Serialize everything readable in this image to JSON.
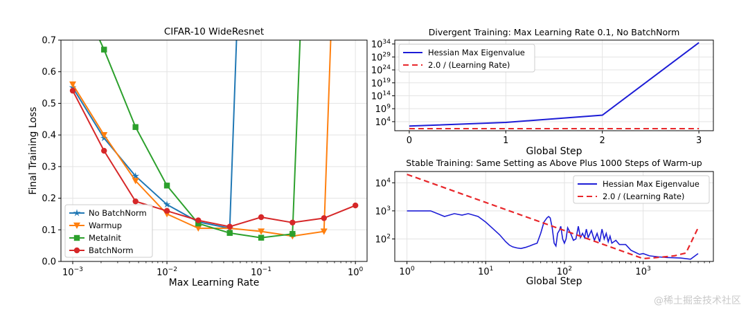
{
  "chart_data": [
    {
      "id": "left",
      "type": "line",
      "title": "CIFAR-10 WideResnet",
      "xlabel": "Max Learning Rate",
      "ylabel": "Final Training Loss",
      "xscale": "log",
      "xlim": [
        0.00075,
        1.33
      ],
      "ylim": [
        0.0,
        0.7
      ],
      "xticks": [
        {
          "v": 0.001,
          "m": "10",
          "e": "−3"
        },
        {
          "v": 0.01,
          "m": "10",
          "e": "−2"
        },
        {
          "v": 0.1,
          "m": "10",
          "e": "−1"
        },
        {
          "v": 1,
          "m": "10",
          "e": "0"
        }
      ],
      "yticks": [
        {
          "v": 0.0,
          "t": "0.0"
        },
        {
          "v": 0.1,
          "t": "0.1"
        },
        {
          "v": 0.2,
          "t": "0.2"
        },
        {
          "v": 0.3,
          "t": "0.3"
        },
        {
          "v": 0.4,
          "t": "0.4"
        },
        {
          "v": 0.5,
          "t": "0.5"
        },
        {
          "v": 0.6,
          "t": "0.6"
        },
        {
          "v": 0.7,
          "t": "0.7"
        }
      ],
      "grid": true,
      "legend": "lower-left",
      "series": [
        {
          "name": "No BatchNorm",
          "color": "#1f77b4",
          "marker": "star",
          "x": [
            0.001,
            0.00215,
            0.00464,
            0.01,
            0.0215,
            0.0464,
            0.055
          ],
          "y": [
            0.55,
            0.39,
            0.27,
            0.18,
            0.125,
            0.105,
            0.72
          ],
          "markers": [
            true,
            true,
            true,
            true,
            true,
            true,
            false
          ]
        },
        {
          "name": "Warmup",
          "color": "#ff7f0e",
          "marker": "triangle-down",
          "x": [
            0.001,
            0.00215,
            0.00464,
            0.01,
            0.0215,
            0.0464,
            0.1,
            0.215,
            0.464,
            0.55
          ],
          "y": [
            0.56,
            0.4,
            0.255,
            0.15,
            0.105,
            0.105,
            0.095,
            0.08,
            0.095,
            0.72
          ],
          "markers": [
            true,
            true,
            true,
            true,
            true,
            true,
            true,
            true,
            true,
            false
          ]
        },
        {
          "name": "MetaInit",
          "color": "#2ca02c",
          "marker": "square",
          "x": [
            0.0018,
            0.00215,
            0.00464,
            0.01,
            0.0215,
            0.0464,
            0.1,
            0.215,
            0.26
          ],
          "y": [
            0.72,
            0.67,
            0.425,
            0.24,
            0.12,
            0.09,
            0.075,
            0.087,
            0.72
          ],
          "markers": [
            false,
            true,
            true,
            true,
            true,
            true,
            true,
            true,
            false
          ]
        },
        {
          "name": "BatchNorm",
          "color": "#d62728",
          "marker": "circle",
          "x": [
            0.001,
            0.00215,
            0.00464,
            0.01,
            0.0215,
            0.0464,
            0.1,
            0.215,
            0.464,
            1.0
          ],
          "y": [
            0.54,
            0.35,
            0.19,
            0.16,
            0.13,
            0.11,
            0.14,
            0.123,
            0.137,
            0.177
          ],
          "markers": [
            true,
            true,
            true,
            true,
            true,
            true,
            true,
            true,
            true,
            true
          ]
        }
      ]
    },
    {
      "id": "top-right",
      "type": "line",
      "title": "Divergent Training: Max Learning Rate 0.1, No BatchNorm",
      "xlabel": "Global Step",
      "ylabel": "",
      "xscale": "linear",
      "yscale": "log10",
      "xlim": [
        -0.15,
        3.15
      ],
      "ylim_log10": [
        0.5,
        35.5
      ],
      "xticks": [
        {
          "v": 0,
          "t": "0"
        },
        {
          "v": 1,
          "t": "1"
        },
        {
          "v": 2,
          "t": "2"
        },
        {
          "v": 3,
          "t": "3"
        }
      ],
      "yticks": [
        {
          "v": 4,
          "m": "10",
          "e": "4"
        },
        {
          "v": 9,
          "m": "10",
          "e": "9"
        },
        {
          "v": 14,
          "m": "10",
          "e": "14"
        },
        {
          "v": 19,
          "m": "10",
          "e": "19"
        },
        {
          "v": 24,
          "m": "10",
          "e": "24"
        },
        {
          "v": 29,
          "m": "10",
          "e": "29"
        },
        {
          "v": 34,
          "m": "10",
          "e": "34"
        }
      ],
      "grid": true,
      "legend": "top-left",
      "series": [
        {
          "name": "Hessian Max Eigenvalue",
          "color": "#1c1cd6",
          "dash": "solid",
          "x": [
            0,
            1,
            2,
            3
          ],
          "y_log10": [
            2.3,
            3.7,
            6.5,
            34.5
          ]
        },
        {
          "name": "2.0 / (Learning Rate)",
          "color": "#e8262a",
          "dash": "dashed",
          "x": [
            0,
            1,
            2,
            3
          ],
          "y_log10": [
            1.3,
            1.3,
            1.3,
            1.3
          ]
        }
      ]
    },
    {
      "id": "bottom-right",
      "type": "line",
      "title": "Stable Training: Same Setting as Above Plus 1000 Steps of Warm-up",
      "xlabel": "Global Step",
      "ylabel": "",
      "xscale": "log",
      "yscale": "log10",
      "xlim": [
        0.7,
        7800
      ],
      "ylim_log10": [
        1.2,
        4.4
      ],
      "xticks": [
        {
          "v": 1,
          "m": "10",
          "e": "0"
        },
        {
          "v": 10,
          "m": "10",
          "e": "1"
        },
        {
          "v": 100,
          "m": "10",
          "e": "2"
        },
        {
          "v": 1000,
          "m": "10",
          "e": "3"
        }
      ],
      "yticks": [
        {
          "v": 2,
          "m": "10",
          "e": "2"
        },
        {
          "v": 3,
          "m": "10",
          "e": "3"
        },
        {
          "v": 4,
          "m": "10",
          "e": "4"
        }
      ],
      "grid": true,
      "legend": "top-right",
      "series": [
        {
          "name": "Hessian Max Eigenvalue",
          "color": "#1c1cd6",
          "dash": "solid",
          "x": [
            1,
            2,
            3,
            4,
            5,
            6,
            8,
            10,
            12,
            15,
            18,
            20,
            22,
            25,
            28,
            32,
            36,
            40,
            45,
            50,
            55,
            60,
            63,
            66,
            70,
            74,
            78,
            82,
            86,
            90,
            95,
            100,
            105,
            110,
            120,
            130,
            140,
            150,
            160,
            170,
            180,
            190,
            200,
            220,
            240,
            260,
            280,
            300,
            320,
            340,
            360,
            380,
            400,
            450,
            500,
            600,
            700,
            800,
            900,
            1000,
            1200,
            1600,
            2000,
            3000,
            4000,
            5000
          ],
          "y_log10": [
            3.0,
            3.0,
            2.8,
            2.9,
            2.85,
            2.9,
            2.8,
            2.6,
            2.4,
            2.15,
            1.9,
            1.78,
            1.72,
            1.68,
            1.66,
            1.7,
            1.75,
            1.8,
            1.85,
            2.2,
            2.6,
            2.75,
            2.8,
            2.75,
            2.4,
            1.85,
            1.75,
            2.2,
            2.3,
            2.45,
            2.0,
            1.85,
            2.0,
            2.4,
            2.2,
            1.95,
            2.0,
            2.45,
            2.05,
            2.2,
            2.05,
            2.35,
            2.05,
            2.3,
            1.95,
            2.2,
            1.9,
            2.35,
            2.0,
            2.2,
            1.9,
            2.1,
            1.85,
            1.95,
            1.8,
            1.8,
            1.6,
            1.52,
            1.45,
            1.48,
            1.4,
            1.36,
            1.34,
            1.32,
            1.28,
            1.48
          ]
        },
        {
          "name": "2.0 / (Learning Rate)",
          "color": "#e8262a",
          "dash": "dashed",
          "x": [
            1,
            1000,
            1400,
            2500,
            3500,
            5000
          ],
          "y_log10": [
            4.3,
            1.3,
            1.33,
            1.4,
            1.5,
            2.4
          ]
        }
      ]
    }
  ],
  "watermark": "@稀土掘金技术社区"
}
